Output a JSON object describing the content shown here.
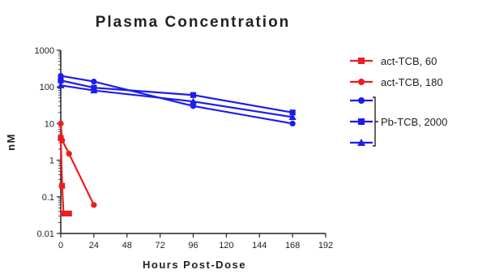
{
  "chart_data": {
    "type": "line",
    "title": "Plasma Concentration",
    "xlabel": "Hours Post-Dose",
    "ylabel": "nM",
    "xlim": [
      0,
      192
    ],
    "ylim": [
      0.01,
      1000
    ],
    "yscale": "log",
    "x_ticks": [
      "0",
      "24",
      "48",
      "72",
      "96",
      "120",
      "144",
      "168",
      "192"
    ],
    "x_tick_values": [
      0,
      24,
      48,
      72,
      96,
      120,
      144,
      168,
      192
    ],
    "y_ticks": [
      "0.01",
      "0.1",
      "1",
      "10",
      "100",
      "1000"
    ],
    "y_tick_values": [
      0.01,
      0.1,
      1,
      10,
      100,
      1000
    ],
    "grid": false,
    "legend_position": "right",
    "series": [
      {
        "name": "act-TCB, 60",
        "color": "#ee1c1c",
        "marker": "square",
        "points": [
          [
            0,
            4
          ],
          [
            1,
            0.2
          ],
          [
            2,
            0.035
          ],
          [
            6,
            0.035
          ]
        ]
      },
      {
        "name": "act-TCB, 180",
        "color": "#ee1c1c",
        "marker": "circle",
        "points": [
          [
            0,
            10
          ],
          [
            1,
            3.5
          ],
          [
            6,
            1.5
          ],
          [
            24,
            0.06
          ]
        ]
      },
      {
        "name": "",
        "color": "#1c1cee",
        "marker": "circle",
        "points": [
          [
            0,
            200
          ],
          [
            24,
            140
          ],
          [
            96,
            30
          ],
          [
            168,
            10
          ]
        ]
      },
      {
        "name": "",
        "color": "#1c1cee",
        "marker": "square",
        "points": [
          [
            0,
            150
          ],
          [
            24,
            95
          ],
          [
            96,
            60
          ],
          [
            168,
            20
          ]
        ]
      },
      {
        "name": "",
        "color": "#1c1cee",
        "marker": "triangle",
        "points": [
          [
            0,
            110
          ],
          [
            24,
            80
          ],
          [
            96,
            40
          ],
          [
            168,
            15
          ]
        ]
      }
    ],
    "legend_group_label": "Pb-TCB, 2000"
  }
}
